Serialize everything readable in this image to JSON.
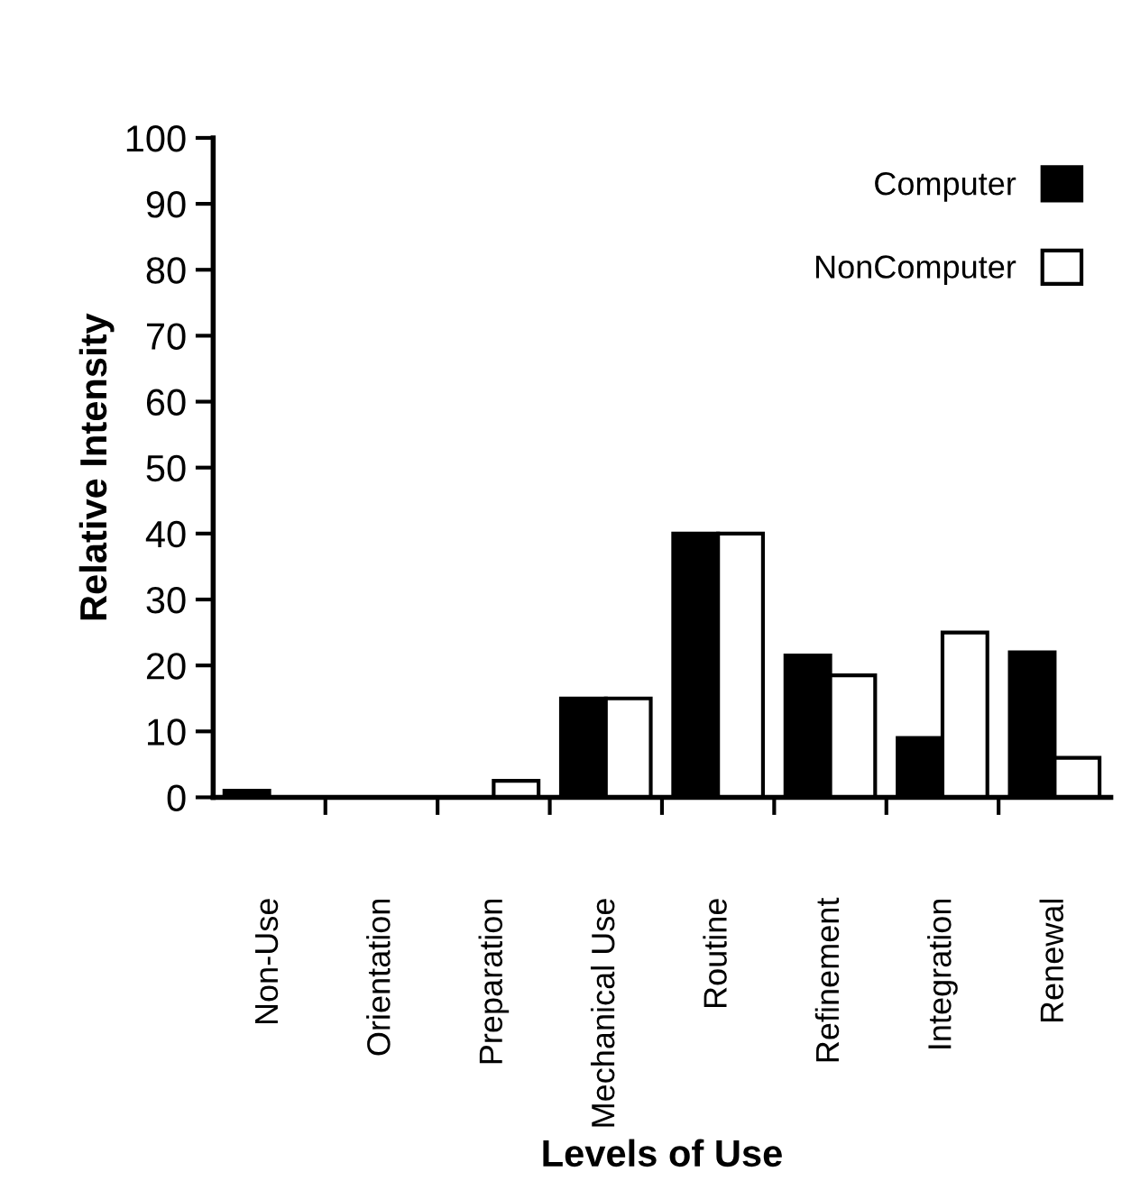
{
  "chart_data": {
    "type": "bar",
    "xlabel": "Levels of Use",
    "ylabel": "Relative Intensity",
    "categories": [
      "Non-Use",
      "Orientation",
      "Preparation",
      "Mechanical Use",
      "Routine",
      "Refinement",
      "Integration",
      "Renewal"
    ],
    "series": [
      {
        "name": "Computer",
        "color": "#000000",
        "values": [
          1,
          null,
          null,
          15,
          40,
          21.5,
          9,
          22
        ]
      },
      {
        "name": "NonComputer",
        "color": "#ffffff",
        "values": [
          null,
          null,
          2.5,
          15,
          40,
          18.5,
          25,
          6
        ]
      }
    ],
    "ylim": [
      0,
      100
    ],
    "yticks": [
      0,
      10,
      20,
      30,
      40,
      50,
      60,
      70,
      80,
      90,
      100
    ],
    "grid": false,
    "legend": "top right"
  }
}
